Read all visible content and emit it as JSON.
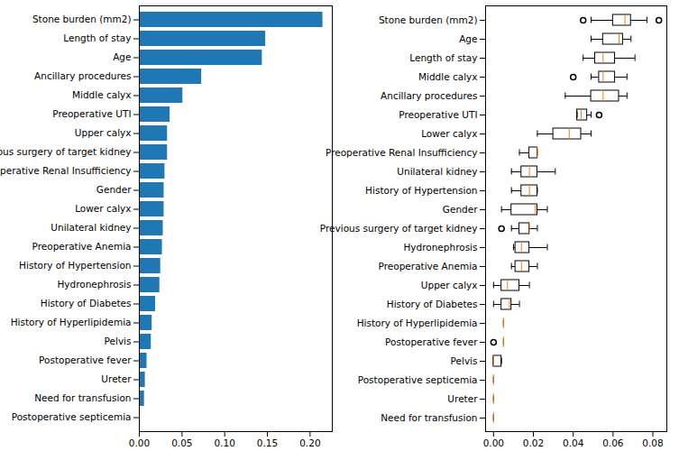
{
  "chart_data": [
    {
      "type": "bar",
      "orientation": "horizontal",
      "color": "#1f77b4",
      "categories": [
        "Stone burden (mm2)",
        "Length of stay",
        "Age",
        "Ancillary procedures",
        "Middle calyx",
        "Preoperative UTI",
        "Upper calyx",
        "Previous surgery of target kidney",
        "Preoperative Renal Insufficiency",
        "Gender",
        "Lower calyx",
        "Unilateral kidney",
        "Preoperative Anemia",
        "History of Hypertension",
        "Hydronephrosis",
        "History of Diabetes",
        "History of Hyperlipidemia",
        "Pelvis",
        "Postoperative fever",
        "Ureter",
        "Need for transfusion",
        "Postoperative septicemia"
      ],
      "values": [
        0.215,
        0.148,
        0.144,
        0.073,
        0.051,
        0.036,
        0.033,
        0.033,
        0.03,
        0.029,
        0.029,
        0.028,
        0.027,
        0.025,
        0.024,
        0.019,
        0.015,
        0.014,
        0.009,
        0.007,
        0.006,
        0.0
      ],
      "xlim": [
        0,
        0.226
      ],
      "xticks": [
        {
          "value": 0,
          "label": "0.00"
        },
        {
          "value": 0.05,
          "label": "0.05"
        },
        {
          "value": 0.1,
          "label": "0.10"
        },
        {
          "value": 0.15,
          "label": "0.15"
        },
        {
          "value": 0.2,
          "label": "0.20"
        }
      ]
    },
    {
      "type": "box",
      "orientation": "horizontal",
      "color": "#ff7f0e",
      "categories": [
        "Stone burden (mm2)",
        "Age",
        "Length of stay",
        "Middle calyx",
        "Ancillary procedures",
        "Preoperative UTI",
        "Lower calyx",
        "Preoperative Renal Insufficiency",
        "Unilateral kidney",
        "History of Hypertension",
        "Gender",
        "Previous surgery of target kidney",
        "Hydronephrosis",
        "Preoperative Anemia",
        "Upper calyx",
        "History of Diabetes",
        "History of Hyperlipidemia",
        "Postoperative fever",
        "Pelvis",
        "Postoperative septicemia",
        "Ureter",
        "Need for transfusion"
      ],
      "boxes": [
        {
          "min": 0.049,
          "q1": 0.06,
          "median": 0.066,
          "q3": 0.069,
          "max": 0.077,
          "outliers": [
            0.045,
            0.083
          ]
        },
        {
          "min": 0.049,
          "q1": 0.055,
          "median": 0.063,
          "q3": 0.065,
          "max": 0.069,
          "outliers": []
        },
        {
          "min": 0.045,
          "q1": 0.051,
          "median": 0.055,
          "q3": 0.061,
          "max": 0.071,
          "outliers": []
        },
        {
          "min": 0.049,
          "q1": 0.053,
          "median": 0.055,
          "q3": 0.061,
          "max": 0.067,
          "outliers": [
            0.04
          ]
        },
        {
          "min": 0.036,
          "q1": 0.049,
          "median": 0.055,
          "q3": 0.063,
          "max": 0.067,
          "outliers": []
        },
        {
          "min": 0.042,
          "q1": 0.042,
          "median": 0.044,
          "q3": 0.047,
          "max": 0.049,
          "outliers": [
            0.053
          ]
        },
        {
          "min": 0.022,
          "q1": 0.03,
          "median": 0.038,
          "q3": 0.044,
          "max": 0.049,
          "outliers": []
        },
        {
          "min": 0.013,
          "q1": 0.018,
          "median": 0.022,
          "q3": 0.022,
          "max": 0.022,
          "outliers": []
        },
        {
          "min": 0.009,
          "q1": 0.014,
          "median": 0.018,
          "q3": 0.022,
          "max": 0.031,
          "outliers": []
        },
        {
          "min": 0.009,
          "q1": 0.014,
          "median": 0.018,
          "q3": 0.022,
          "max": 0.022,
          "outliers": []
        },
        {
          "min": 0.004,
          "q1": 0.009,
          "median": 0.021,
          "q3": 0.022,
          "max": 0.027,
          "outliers": []
        },
        {
          "min": 0.009,
          "q1": 0.013,
          "median": 0.018,
          "q3": 0.018,
          "max": 0.022,
          "outliers": [
            0.004
          ]
        },
        {
          "min": 0.01,
          "q1": 0.011,
          "median": 0.014,
          "q3": 0.018,
          "max": 0.027,
          "outliers": []
        },
        {
          "min": 0.009,
          "q1": 0.011,
          "median": 0.014,
          "q3": 0.018,
          "max": 0.022,
          "outliers": []
        },
        {
          "min": 0.0,
          "q1": 0.004,
          "median": 0.007,
          "q3": 0.013,
          "max": 0.018,
          "outliers": []
        },
        {
          "min": 0.0,
          "q1": 0.004,
          "median": 0.008,
          "q3": 0.009,
          "max": 0.013,
          "outliers": []
        },
        {
          "min": 0.005,
          "q1": 0.005,
          "median": 0.005,
          "q3": 0.005,
          "max": 0.005,
          "outliers": []
        },
        {
          "min": 0.005,
          "q1": 0.005,
          "median": 0.005,
          "q3": 0.005,
          "max": 0.005,
          "outliers": [
            0.0
          ]
        },
        {
          "min": 0.0,
          "q1": 0.0,
          "median": 0.0,
          "q3": 0.004,
          "max": 0.004,
          "outliers": []
        },
        {
          "min": 0.0,
          "q1": 0.0,
          "median": 0.0,
          "q3": 0.0,
          "max": 0.0,
          "outliers": []
        },
        {
          "min": 0.0,
          "q1": 0.0,
          "median": 0.0,
          "q3": 0.0,
          "max": 0.0,
          "outliers": []
        },
        {
          "min": 0.0,
          "q1": 0.0,
          "median": 0.0,
          "q3": 0.0,
          "max": 0.0,
          "outliers": []
        }
      ],
      "xlim": [
        -0.004,
        0.087
      ],
      "xticks": [
        {
          "value": 0,
          "label": "0.00"
        },
        {
          "value": 0.02,
          "label": "0.02"
        },
        {
          "value": 0.04,
          "label": "0.04"
        },
        {
          "value": 0.06,
          "label": "0.06"
        },
        {
          "value": 0.08,
          "label": "0.08"
        }
      ]
    }
  ]
}
